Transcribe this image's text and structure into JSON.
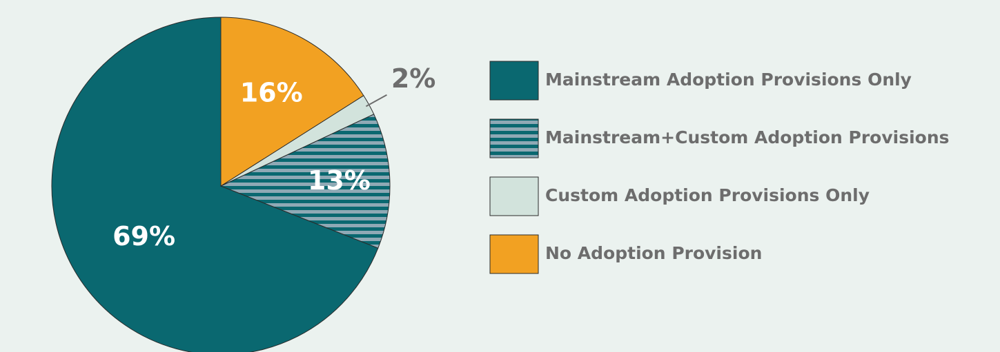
{
  "chart_data": {
    "type": "pie",
    "categories": [
      "Mainstream Adoption Provisions Only",
      "Mainstream+Custom Adoption Provisions",
      "Custom Adoption Provisions Only",
      "No Adoption Provision"
    ],
    "values": [
      69,
      13,
      2,
      16
    ],
    "value_labels": [
      "69%",
      "13%",
      "2%",
      "16%"
    ],
    "colors": [
      "#0a6870",
      "#8fa9b5",
      "#d2e3dc",
      "#f2a122"
    ],
    "hatched": [
      false,
      true,
      false,
      false
    ],
    "hatch_color": "#0a6870"
  }
}
